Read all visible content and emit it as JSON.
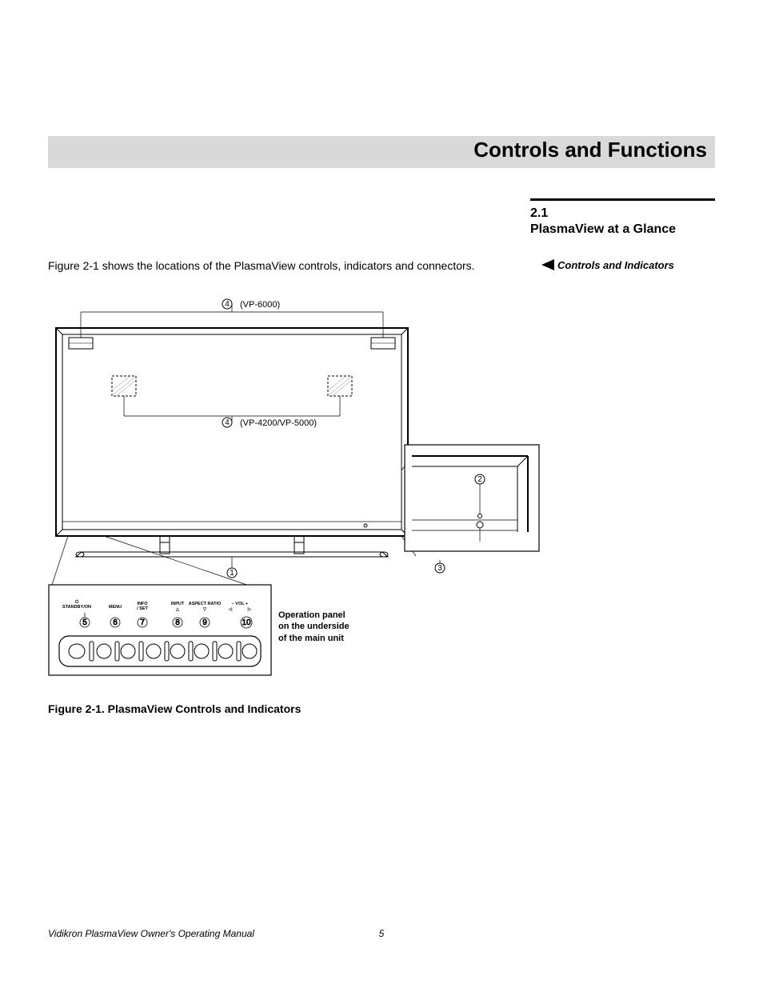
{
  "title": "Controls and Functions",
  "section": {
    "number": "2.1",
    "name": "PlasmaView at a Glance"
  },
  "side_sub": "Controls and Indicators",
  "intro": "Figure 2-1 shows the locations of the PlasmaView controls, indicators and connectors.",
  "figure_caption": "Figure 2-1. PlasmaView Controls and Indicators",
  "footer": {
    "left": "Vidikron PlasmaView Owner's Operating Manual",
    "page": "5"
  },
  "callouts": {
    "c1": "1",
    "c2": "2",
    "c3": "3",
    "c4a": "4",
    "c4b": "4",
    "c5": "5",
    "c6": "6",
    "c7": "7",
    "c8": "8",
    "c9": "9",
    "c10": "10",
    "vp6000": "(VP-6000)",
    "vp4200": "(VP-4200/VP-5000)"
  },
  "panel_labels": {
    "standby": "STANDBY/ON",
    "menu": "MENU",
    "info": "INFO\n/ SET",
    "input": "INPUT",
    "aspect": "ASPECT RATIO",
    "volminus": "– VOL +",
    "up": "△",
    "down": "▽",
    "left": "◁",
    "right": "▷"
  },
  "op_caption": "Operation panel\non the underside\nof the main unit",
  "colors": {
    "bar": "#d9d9d9",
    "stroke": "#000000",
    "dash": "#000000",
    "hatch": "#808080"
  }
}
